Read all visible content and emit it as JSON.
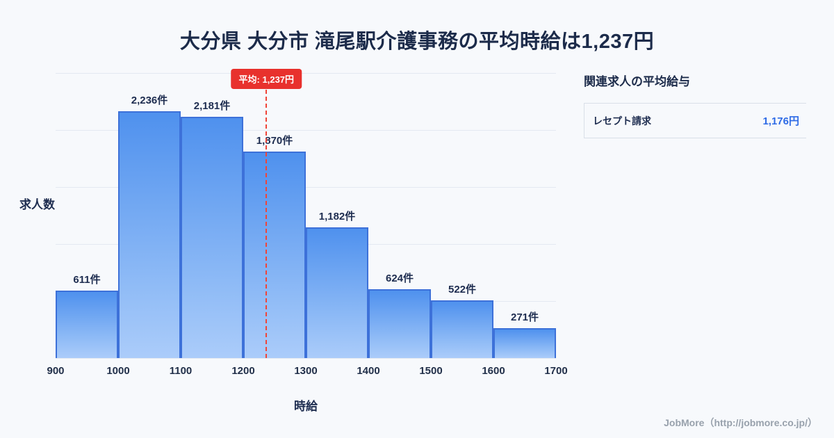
{
  "chart_data": {
    "type": "bar",
    "title": "大分県 大分市 滝尾駅介護事務の平均時給は1,237円",
    "categories": [
      "900",
      "1000",
      "1100",
      "1200",
      "1300",
      "1400",
      "1500",
      "1600",
      "1700"
    ],
    "bins": [
      900,
      1000,
      1100,
      1200,
      1300,
      1400,
      1500,
      1600
    ],
    "values": [
      611,
      2236,
      2181,
      1870,
      1182,
      624,
      522,
      271
    ],
    "bar_labels": [
      "611件",
      "2,236件",
      "2,181件",
      "1,870件",
      "1,182件",
      "624件",
      "522件",
      "271件"
    ],
    "xlabel": "時給",
    "ylabel": "求人数",
    "x_range": [
      900,
      1700
    ],
    "ylim": [
      0,
      2580
    ],
    "grid": true,
    "legend": "none",
    "average": {
      "value": 1237,
      "label": "平均: 1,237円"
    },
    "colors": {
      "bar_fill_top": "#4f91ee",
      "bar_fill_bottom": "#abccfa",
      "bar_border": "#3d71d9",
      "average_line": "#f04438",
      "badge_background": "#e8312d",
      "value_accent": "#2e6be6"
    }
  },
  "side_panel": {
    "title": "関連求人の平均給与",
    "items": [
      {
        "label": "レセプト請求",
        "value": "1,176円"
      }
    ]
  },
  "footer": {
    "credit": "JobMore（http://jobmore.co.jp/）"
  }
}
